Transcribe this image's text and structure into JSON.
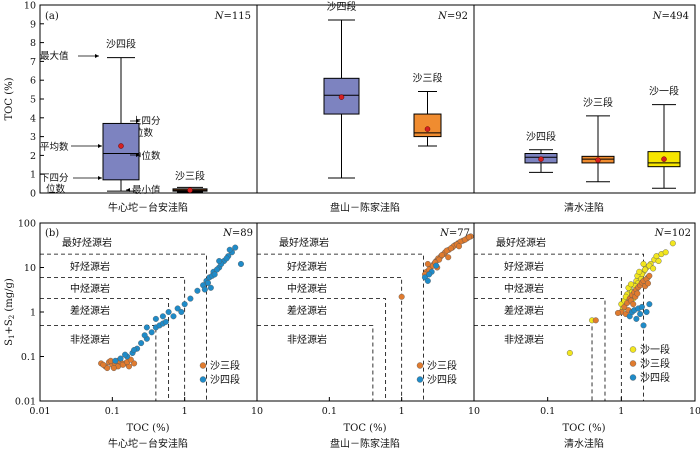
{
  "chart_data": [
    {
      "type": "box",
      "panel_label": "(a)",
      "ylabel": "TOC (%)",
      "ylim": [
        0,
        10
      ],
      "yticks": [
        0,
        1,
        2,
        3,
        4,
        5,
        6,
        7,
        8,
        9,
        10
      ],
      "groups": [
        {
          "name": "牛心坨－台安洼陷",
          "n_text": "N=115",
          "boxes": [
            {
              "label": "沙四段",
              "min": 0.1,
              "q1": 0.7,
              "median": 2.1,
              "q3": 3.7,
              "max": 7.2,
              "mean": 2.5,
              "color": "#7d83c0"
            },
            {
              "label": "沙三段",
              "min": 0.05,
              "q1": 0.1,
              "median": 0.15,
              "q3": 0.22,
              "max": 0.3,
              "mean": 0.15,
              "color": "#e07b2f"
            }
          ],
          "annotations": {
            "max": "最大值",
            "q3_line1": "上四分",
            "q3_line2": "位数",
            "mean": "平均数",
            "median": "中位数",
            "q1_line1": "下四分",
            "q1_line2": "位数",
            "min": "最小值"
          }
        },
        {
          "name": "盘山－陈家洼陷",
          "n_text": "N=92",
          "boxes": [
            {
              "label": "沙四段",
              "min": 0.8,
              "q1": 4.2,
              "median": 5.2,
              "q3": 6.1,
              "max": 9.2,
              "mean": 5.1,
              "color": "#7d83c0"
            },
            {
              "label": "沙三段",
              "min": 2.5,
              "q1": 3.0,
              "median": 3.2,
              "q3": 4.2,
              "max": 5.4,
              "mean": 3.4,
              "color": "#f08c30"
            }
          ]
        },
        {
          "name": "清水洼陷",
          "n_text": "N=494",
          "boxes": [
            {
              "label": "沙四段",
              "min": 1.1,
              "q1": 1.6,
              "median": 1.9,
              "q3": 2.1,
              "max": 2.3,
              "mean": 1.8,
              "color": "#7d83c0"
            },
            {
              "label": "沙三段",
              "min": 0.6,
              "q1": 1.6,
              "median": 1.8,
              "q3": 1.95,
              "max": 4.1,
              "mean": 1.75,
              "color": "#f08c30"
            },
            {
              "label": "沙一段",
              "min": 0.25,
              "q1": 1.4,
              "median": 1.6,
              "q3": 2.2,
              "max": 4.7,
              "mean": 1.8,
              "color": "#f7e600"
            }
          ]
        }
      ]
    },
    {
      "type": "scatter",
      "panel_label": "(b)",
      "ylabel_main": "S",
      "ylabel_sub1": "1",
      "ylabel_plus": "+S",
      "ylabel_sub2": "2",
      "ylabel_unit": " (mg/g)",
      "xlabel": "TOC (%)",
      "xscale": "log",
      "yscale": "log",
      "xlim": [
        0.01,
        10
      ],
      "ylim": [
        0.01,
        100
      ],
      "xticks": [
        "0.01",
        "0.1",
        "1",
        "10"
      ],
      "yticks": [
        "0.01",
        "0.1",
        "1",
        "10",
        "100"
      ],
      "zones": [
        {
          "label": "最好烃源岩",
          "toc": 2.0,
          "s": 20
        },
        {
          "label": "好烃源岩",
          "toc": 1.0,
          "s": 6
        },
        {
          "label": "中烃源岩",
          "toc": 0.6,
          "s": 2
        },
        {
          "label": "差烃源岩",
          "toc": 0.4,
          "s": 0.5
        },
        {
          "label": "非烃源岩",
          "toc": null,
          "s": null
        }
      ],
      "panels": [
        {
          "name": "牛心坨－台安洼陷",
          "n_text": "N=89",
          "legend": [
            "沙三段",
            "沙四段"
          ],
          "series": [
            {
              "name": "沙三段",
              "color": "#e07b2f",
              "points": [
                [
                  0.07,
                  0.07
                ],
                [
                  0.08,
                  0.06
                ],
                [
                  0.09,
                  0.075
                ],
                [
                  0.1,
                  0.065
                ],
                [
                  0.11,
                  0.07
                ],
                [
                  0.12,
                  0.06
                ],
                [
                  0.13,
                  0.075
                ],
                [
                  0.15,
                  0.07
                ],
                [
                  0.085,
                  0.055
                ],
                [
                  0.095,
                  0.08
                ],
                [
                  0.14,
                  0.065
                ],
                [
                  0.17,
                  0.06
                ],
                [
                  0.075,
                  0.065
                ],
                [
                  0.105,
                  0.055
                ],
                [
                  0.16,
                  0.075
                ],
                [
                  0.12,
                  0.08
                ],
                [
                  0.2,
                  0.07
                ],
                [
                  0.18,
                  0.085
                ]
              ]
            },
            {
              "name": "沙四段",
              "color": "#1f8bc8",
              "points": [
                [
                  0.11,
                  0.08
                ],
                [
                  0.13,
                  0.09
                ],
                [
                  0.16,
                  0.1
                ],
                [
                  0.19,
                  0.12
                ],
                [
                  0.22,
                  0.15
                ],
                [
                  0.25,
                  0.2
                ],
                [
                  0.3,
                  0.25
                ],
                [
                  0.35,
                  0.35
                ],
                [
                  0.4,
                  0.45
                ],
                [
                  0.45,
                  0.5
                ],
                [
                  0.5,
                  0.55
                ],
                [
                  0.55,
                  0.6
                ],
                [
                  0.3,
                  0.45
                ],
                [
                  0.4,
                  0.7
                ],
                [
                  0.6,
                  1.0
                ],
                [
                  0.8,
                  1.2
                ],
                [
                  1.0,
                  1.5
                ],
                [
                  1.2,
                  2.0
                ],
                [
                  1.5,
                  3.0
                ],
                [
                  1.8,
                  4.0
                ],
                [
                  2.0,
                  5.0
                ],
                [
                  2.2,
                  6.0
                ],
                [
                  2.5,
                  8.0
                ],
                [
                  3.0,
                  10
                ],
                [
                  3.5,
                  14
                ],
                [
                  4.0,
                  18
                ],
                [
                  4.5,
                  22
                ],
                [
                  5.0,
                  28
                ],
                [
                  2.4,
                  6.5
                ],
                [
                  2.8,
                  9
                ],
                [
                  3.2,
                  12
                ],
                [
                  2.1,
                  4.5
                ],
                [
                  2.6,
                  7
                ],
                [
                  3.8,
                  16
                ],
                [
                  4.2,
                  25
                ],
                [
                  1.9,
                  3.2
                ],
                [
                  0.9,
                  1.0
                ],
                [
                  0.7,
                  0.8
                ],
                [
                  0.15,
                  0.11
                ],
                [
                  0.2,
                  0.14
                ],
                [
                  0.28,
                  0.3
                ],
                [
                  0.5,
                  0.8
                ],
                [
                  6.0,
                  12
                ],
                [
                  2.3,
                  3.5
                ],
                [
                  3.0,
                  14
                ]
              ]
            }
          ]
        },
        {
          "name": "盘山－陈家洼陷",
          "n_text": "N=77",
          "legend": [
            "沙三段",
            "沙四段"
          ],
          "series": [
            {
              "name": "沙三段",
              "color": "#e07b2f",
              "points": [
                [
                  2.2,
                  8
                ],
                [
                  2.5,
                  10
                ],
                [
                  2.8,
                  12
                ],
                [
                  3.0,
                  14
                ],
                [
                  3.2,
                  16
                ],
                [
                  3.5,
                  18
                ],
                [
                  3.8,
                  20
                ],
                [
                  4.0,
                  22
                ],
                [
                  4.5,
                  25
                ],
                [
                  5.0,
                  28
                ],
                [
                  5.5,
                  32
                ],
                [
                  6.0,
                  35
                ],
                [
                  7.0,
                  40
                ],
                [
                  8.0,
                  45
                ],
                [
                  9.0,
                  50
                ],
                [
                  2.4,
                  9
                ],
                [
                  2.7,
                  11
                ],
                [
                  3.3,
                  15
                ],
                [
                  4.2,
                  24
                ],
                [
                  5.2,
                  30
                ],
                [
                  6.5,
                  38
                ],
                [
                  7.5,
                  42
                ],
                [
                  2.1,
                  7
                ],
                [
                  2.3,
                  12
                ],
                [
                  3.6,
                  19
                ],
                [
                  4.8,
                  27
                ],
                [
                  5.8,
                  33
                ],
                [
                  8.5,
                  48
                ],
                [
                  9.5,
                  55
                ],
                [
                  2.9,
                  13
                ],
                [
                  1.0,
                  2.2
                ],
                [
                  3.1,
                  10
                ],
                [
                  4.4,
                  17
                ],
                [
                  6.2,
                  30
                ]
              ]
            },
            {
              "name": "沙四段",
              "color": "#1f8bc8",
              "points": [
                [
                  2.1,
                  6
                ],
                [
                  2.3,
                  5
                ],
                [
                  2.6,
                  8
                ],
                [
                  3.0,
                  11
                ],
                [
                  2.4,
                  7
                ]
              ]
            }
          ]
        },
        {
          "name": "清水洼陷",
          "n_text": "N=102",
          "legend": [
            "沙一段",
            "沙三段",
            "沙四段"
          ],
          "series": [
            {
              "name": "沙一段",
              "color": "#f2e61e",
              "points": [
                [
                  0.2,
                  0.12
                ],
                [
                  0.4,
                  0.65
                ],
                [
                  1.0,
                  1.5
                ],
                [
                  1.2,
                  2.5
                ],
                [
                  1.3,
                  3.2
                ],
                [
                  1.5,
                  4.0
                ],
                [
                  1.6,
                  5.0
                ],
                [
                  1.8,
                  6.0
                ],
                [
                  2.0,
                  8.0
                ],
                [
                  2.2,
                  10
                ],
                [
                  2.5,
                  12
                ],
                [
                  2.8,
                  15
                ],
                [
                  3.0,
                  18
                ],
                [
                  3.5,
                  20
                ],
                [
                  4.0,
                  22
                ],
                [
                  5.0,
                  35
                ],
                [
                  1.4,
                  2.8
                ],
                [
                  1.7,
                  4.5
                ],
                [
                  1.9,
                  7.0
                ],
                [
                  2.1,
                  9.0
                ],
                [
                  2.4,
                  11
                ],
                [
                  1.1,
                  1.8
                ],
                [
                  1.25,
                  3.5
                ],
                [
                  1.45,
                  2.0
                ],
                [
                  1.65,
                  6.5
                ],
                [
                  2.3,
                  6.0
                ],
                [
                  2.7,
                  9.5
                ],
                [
                  3.2,
                  14
                ],
                [
                  1.55,
                  3.8
                ],
                [
                  1.35,
                  4.2
                ],
                [
                  1.75,
                  8.0
                ],
                [
                  2.0,
                  12
                ],
                [
                  1.15,
                  2.2
                ],
                [
                  1.05,
                  1.2
                ],
                [
                  1.85,
                  5.5
                ]
              ]
            },
            {
              "name": "沙三段",
              "color": "#e07b2f",
              "points": [
                [
                  0.45,
                  0.65
                ],
                [
                  1.0,
                  1.0
                ],
                [
                  1.1,
                  1.3
                ],
                [
                  1.2,
                  1.6
                ],
                [
                  1.3,
                  2.0
                ],
                [
                  1.4,
                  2.4
                ],
                [
                  1.5,
                  2.8
                ],
                [
                  1.6,
                  3.2
                ],
                [
                  1.7,
                  3.6
                ],
                [
                  1.8,
                  4.0
                ],
                [
                  1.9,
                  4.6
                ],
                [
                  2.0,
                  5.0
                ],
                [
                  2.2,
                  5.5
                ],
                [
                  2.4,
                  6.5
                ],
                [
                  1.15,
                  0.9
                ],
                [
                  1.25,
                  1.1
                ],
                [
                  1.35,
                  1.8
                ],
                [
                  1.55,
                  2.2
                ],
                [
                  1.65,
                  2.6
                ],
                [
                  0.9,
                  0.95
                ],
                [
                  2.1,
                  3.8
                ],
                [
                  2.3,
                  4.4
                ],
                [
                  1.45,
                  1.5
                ]
              ]
            },
            {
              "name": "沙四段",
              "color": "#1f8bc8",
              "points": [
                [
                  1.3,
                  0.8
                ],
                [
                  1.4,
                  1.0
                ],
                [
                  1.5,
                  1.1
                ],
                [
                  1.6,
                  0.7
                ],
                [
                  1.7,
                  1.2
                ],
                [
                  2.0,
                  0.5
                ],
                [
                  2.2,
                  1.0
                ],
                [
                  1.8,
                  0.9
                ],
                [
                  2.4,
                  1.5
                ],
                [
                  1.9,
                  1.3
                ]
              ]
            }
          ]
        }
      ]
    }
  ]
}
